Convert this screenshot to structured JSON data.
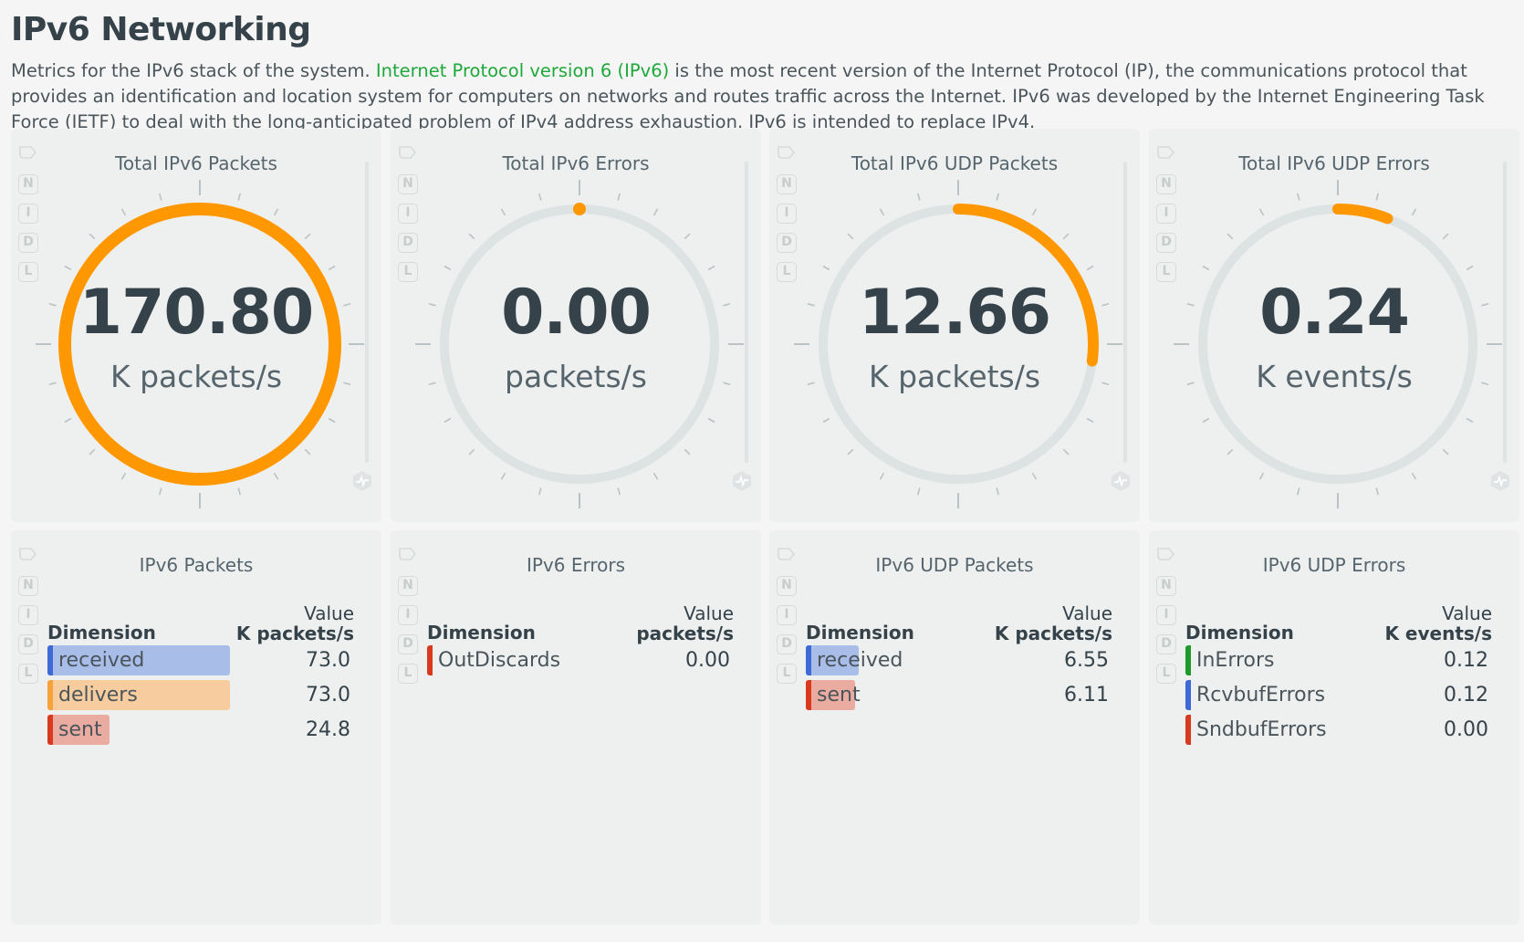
{
  "header": {
    "title": "IPv6 Networking",
    "desc_before": "Metrics for the IPv6 stack of the system. ",
    "desc_link": "Internet Protocol version 6 (IPv6)",
    "desc_after": " is the most recent version of the Internet Protocol (IP), the communications protocol that provides an identification and location system for computers on networks and routes traffic across the Internet. IPv6 was developed by the Internet Engineering Task Force (IETF) to deal with the long-anticipated problem of IPv4 address exhaustion. IPv6 is intended to replace IPv4."
  },
  "side_letters": [
    "N",
    "I",
    "D",
    "L"
  ],
  "colors": {
    "accent": "#ff9800",
    "track": "#dde2e2",
    "blue": "#3d6ad6",
    "orange": "#f6a23a",
    "red": "#d8391f",
    "green": "#1f9a2a"
  },
  "gauges": [
    {
      "title": "Total IPv6 Packets",
      "value": "170.80",
      "unit": "K packets/s",
      "fraction": 1.0
    },
    {
      "title": "Total IPv6 Errors",
      "value": "0.00",
      "unit": "packets/s",
      "fraction": 0.0
    },
    {
      "title": "Total IPv6 UDP Packets",
      "value": "12.66",
      "unit": "K packets/s",
      "fraction": 0.27
    },
    {
      "title": "Total IPv6 UDP Errors",
      "value": "0.24",
      "unit": "K events/s",
      "fraction": 0.06
    }
  ],
  "tables": [
    {
      "title": "IPv6 Packets",
      "dim_header": "Dimension",
      "value_header": "Value",
      "unit_header": "K packets/s",
      "rows": [
        {
          "label": "received",
          "value": "73.0",
          "color": "#3d6ad6",
          "bar_color": "#a9bde9",
          "fraction": 1.0
        },
        {
          "label": "delivers",
          "value": "73.0",
          "color": "#f6a23a",
          "bar_color": "#f7cd9f",
          "fraction": 1.0
        },
        {
          "label": "sent",
          "value": "24.8",
          "color": "#d8391f",
          "bar_color": "#eaaca0",
          "fraction": 0.34
        }
      ]
    },
    {
      "title": "IPv6 Errors",
      "dim_header": "Dimension",
      "value_header": "Value",
      "unit_header": "packets/s",
      "rows": [
        {
          "label": "OutDiscards",
          "value": "0.00",
          "color": "#d8391f",
          "bar_color": "#eaaca0",
          "fraction": 0.0
        }
      ]
    },
    {
      "title": "IPv6 UDP Packets",
      "dim_header": "Dimension",
      "value_header": "Value",
      "unit_header": "K packets/s",
      "rows": [
        {
          "label": "received",
          "value": "6.55",
          "color": "#3d6ad6",
          "bar_color": "#a9bde9",
          "fraction": 0.29
        },
        {
          "label": "sent",
          "value": "6.11",
          "color": "#d8391f",
          "bar_color": "#eaaca0",
          "fraction": 0.27
        }
      ]
    },
    {
      "title": "IPv6 UDP Errors",
      "dim_header": "Dimension",
      "value_header": "Value",
      "unit_header": "K events/s",
      "rows": [
        {
          "label": "InErrors",
          "value": "0.12",
          "color": "#1f9a2a",
          "bar_color": "#b8e0bb",
          "fraction": 0.0
        },
        {
          "label": "RcvbufErrors",
          "value": "0.12",
          "color": "#3d6ad6",
          "bar_color": "#a9bde9",
          "fraction": 0.0
        },
        {
          "label": "SndbufErrors",
          "value": "0.00",
          "color": "#d8391f",
          "bar_color": "#eaaca0",
          "fraction": 0.0
        }
      ]
    }
  ]
}
